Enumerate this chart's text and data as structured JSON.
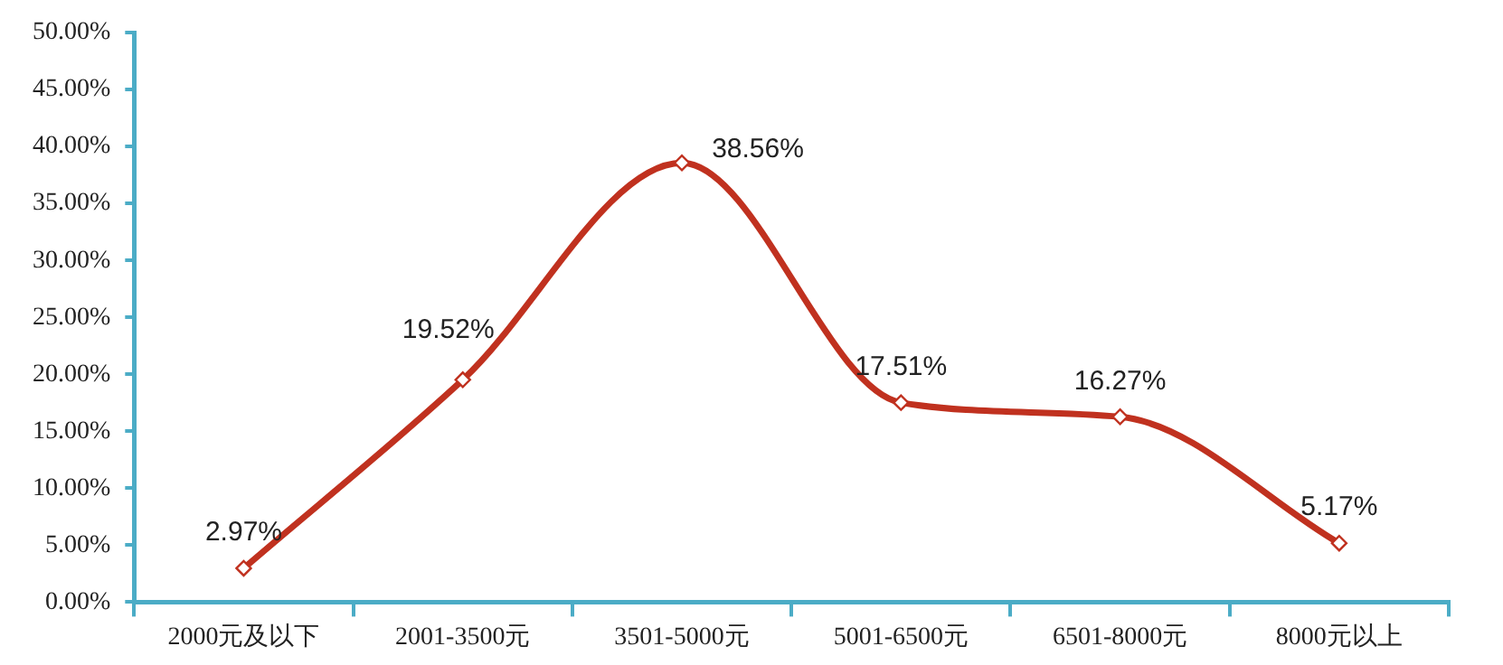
{
  "chart_data": {
    "type": "line",
    "categories": [
      "2000元及以下",
      "2001-3500元",
      "3501-5000元",
      "5001-6500元",
      "6501-8000元",
      "8000元以上"
    ],
    "series": [
      {
        "color": "#c0311f",
        "values": [
          2.97,
          19.52,
          38.56,
          17.51,
          16.27,
          5.17
        ],
        "value_labels": [
          "2.97%",
          "19.52%",
          "38.56%",
          "17.51%",
          "16.27%",
          "5.17%"
        ]
      }
    ],
    "ylim": [
      0,
      50
    ],
    "yticks": [
      {
        "value": 0,
        "label": "0.00%"
      },
      {
        "value": 5,
        "label": "5.00%"
      },
      {
        "value": 10,
        "label": "10.00%"
      },
      {
        "value": 15,
        "label": "15.00%"
      },
      {
        "value": 20,
        "label": "20.00%"
      },
      {
        "value": 25,
        "label": "25.00%"
      },
      {
        "value": 30,
        "label": "30.00%"
      },
      {
        "value": 35,
        "label": "35.00%"
      },
      {
        "value": 40,
        "label": "40.00%"
      },
      {
        "value": 45,
        "label": "45.00%"
      },
      {
        "value": 50,
        "label": "50.00%"
      }
    ],
    "grid": false,
    "legend": false,
    "marker": "diamond",
    "line_style": "solid"
  }
}
